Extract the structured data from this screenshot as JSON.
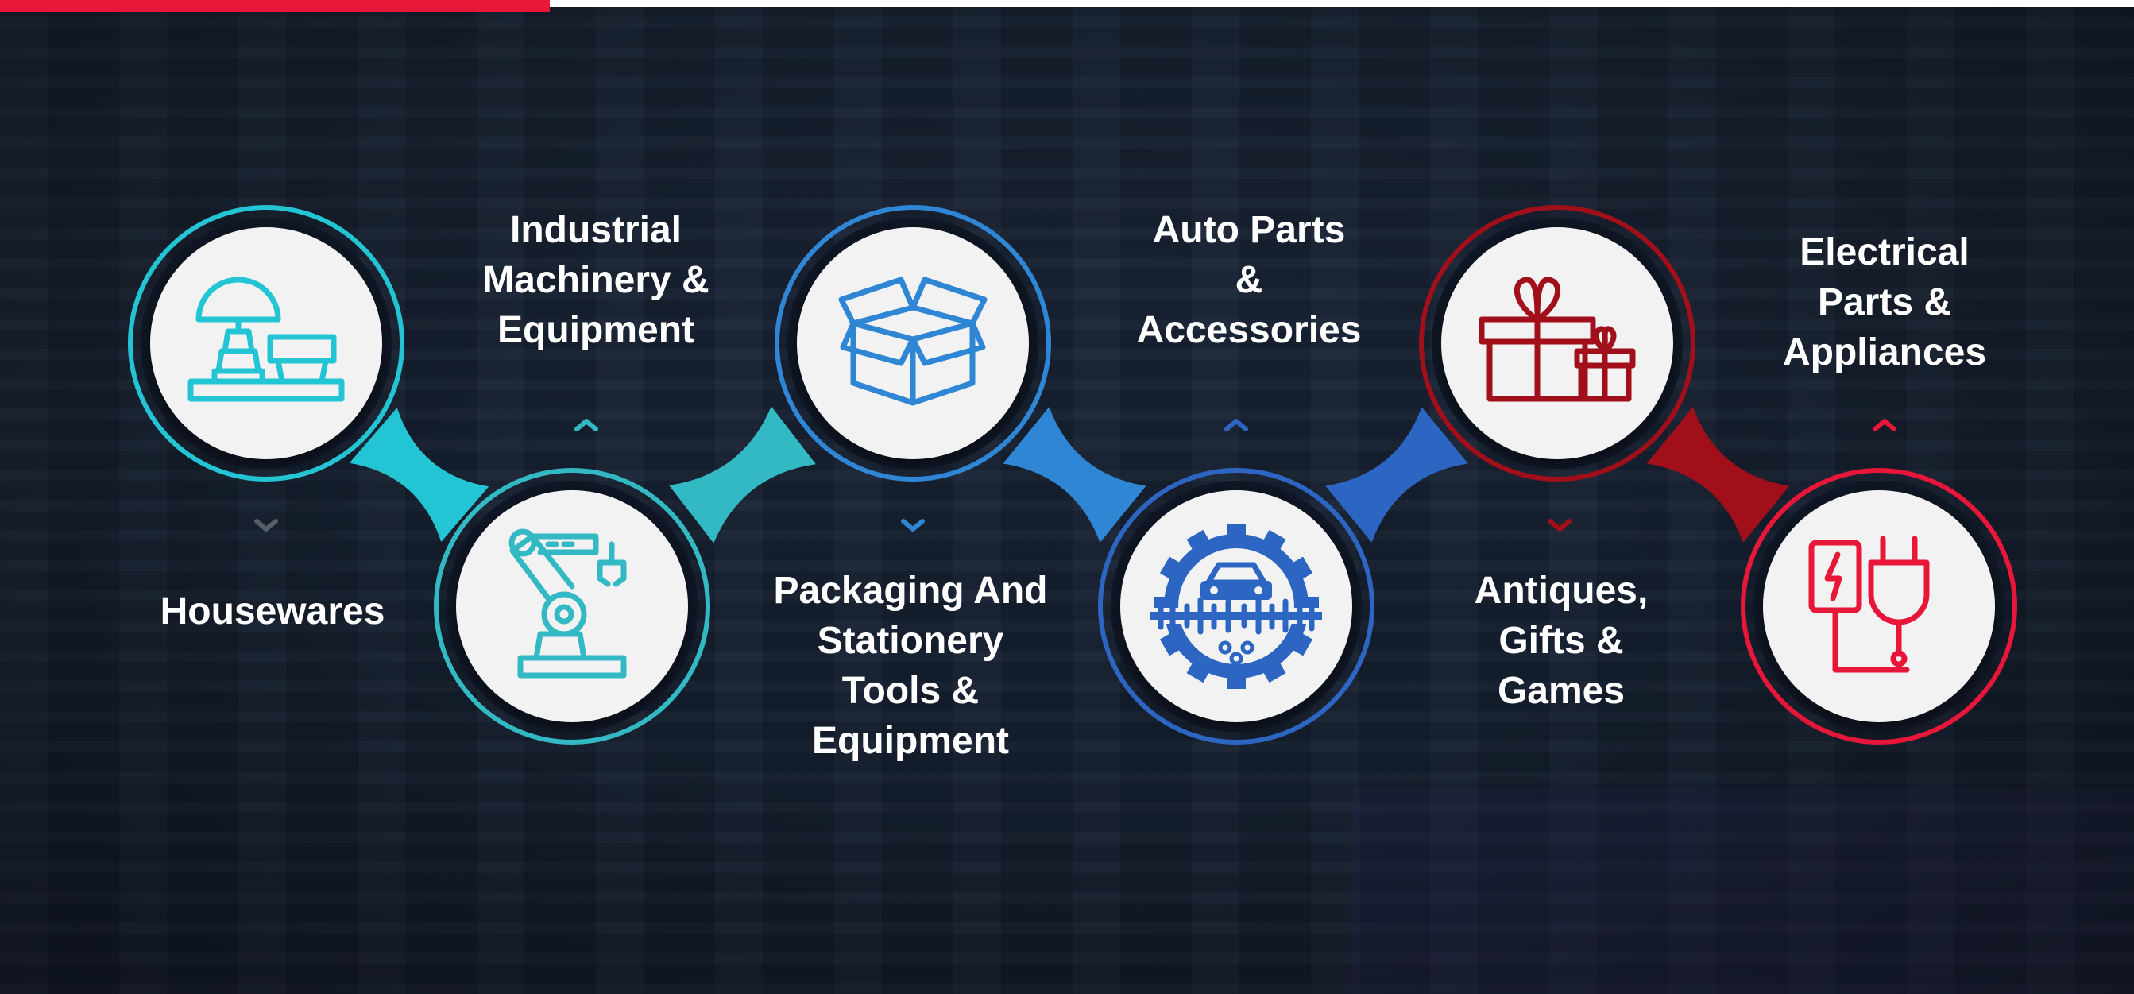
{
  "colors": {
    "background": "#182234",
    "accent_red": "#e8173a",
    "teal": "#2ec4cf",
    "blue": "#2f7ed8",
    "royal_blue": "#2a63c4",
    "dark_red": "#b3121f",
    "bright_red": "#e8173a",
    "circle_fill": "#f2f2f2"
  },
  "categories": [
    {
      "id": "housewares",
      "lines": [
        "Housewares"
      ],
      "icon": "lamp-and-dishes-icon",
      "color": "#23c5d4",
      "position": "top",
      "arrow": "down"
    },
    {
      "id": "industrial",
      "lines": [
        "Industrial",
        "Machinery &",
        "Equipment"
      ],
      "icon": "robot-arm-icon",
      "color": "#33b9c4",
      "position": "bottom",
      "arrow": "up"
    },
    {
      "id": "packaging",
      "lines": [
        "Packaging And",
        "Stationery",
        "Tools &",
        "Equipment"
      ],
      "icon": "open-box-icon",
      "color": "#2f86d4",
      "position": "top",
      "arrow": "down"
    },
    {
      "id": "autoparts",
      "lines": [
        "Auto Parts",
        "&",
        "Accessories"
      ],
      "icon": "car-gear-icon",
      "color": "#2c65c2",
      "position": "bottom",
      "arrow": "up"
    },
    {
      "id": "antiques",
      "lines": [
        "Antiques,",
        "Gifts &",
        "Games"
      ],
      "icon": "gift-boxes-icon",
      "color": "#a10f1b",
      "position": "top",
      "arrow": "down"
    },
    {
      "id": "electrical",
      "lines": [
        "Electrical",
        "Parts &",
        "Appliances"
      ],
      "icon": "charger-plug-icon",
      "color": "#e8173a",
      "position": "bottom",
      "arrow": "up"
    }
  ]
}
